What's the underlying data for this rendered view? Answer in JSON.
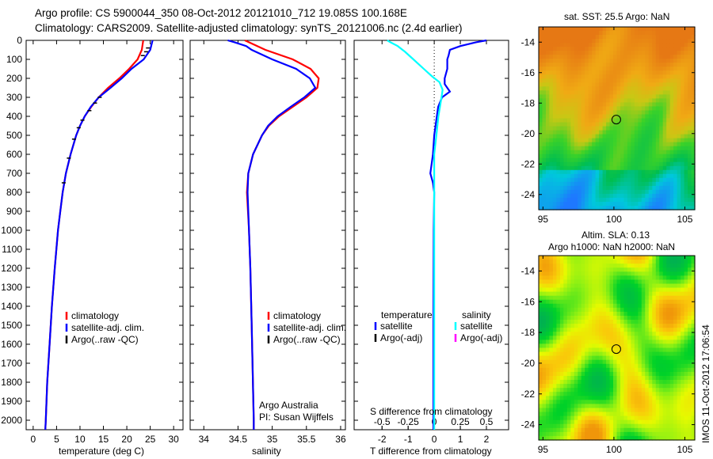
{
  "title": {
    "line1": "Argo profile: CS 5900044_350 08-Oct-2012 20121010_712 19.085S 100.168E",
    "line2": "Climatology: CARS2009. Satellite-adjusted climatology: synTS_20121006.nc (2.4d earlier)"
  },
  "colors": {
    "climatology": "#ff0000",
    "satellite": "#0000ff",
    "argo": "#000000",
    "sal_satellite": "#00ffff",
    "sal_argo": "#ff00ff"
  },
  "chart_data": [
    {
      "type": "line",
      "id": "temperature",
      "xlabel": "temperature (deg C)",
      "ylabel": "",
      "xlim": [
        -1.5,
        32
      ],
      "ylim": [
        2050,
        0
      ],
      "xticks": [
        0,
        5,
        10,
        15,
        20,
        25,
        30
      ],
      "yticks": [
        0,
        100,
        200,
        300,
        400,
        500,
        600,
        700,
        800,
        900,
        1000,
        1100,
        1200,
        1300,
        1400,
        1500,
        1600,
        1700,
        1800,
        1900,
        2000
      ],
      "legend": [
        "climatology",
        "satellite-adj. clim.",
        "Argo(..raw -QC)"
      ],
      "series": [
        {
          "name": "climatology",
          "depth": [
            0,
            50,
            100,
            150,
            200,
            250,
            300,
            350,
            400,
            450,
            500,
            600,
            700,
            800,
            900,
            1000,
            1200,
            1400,
            1600,
            1800,
            2000,
            2050
          ],
          "values": [
            23.5,
            23.2,
            22.3,
            20.5,
            18.4,
            16,
            14,
            12.4,
            11,
            10,
            9.2,
            8,
            7,
            6.3,
            5.8,
            5.3,
            4.6,
            4,
            3.5,
            3,
            2.7,
            2.6
          ]
        },
        {
          "name": "satellite-adj. clim.",
          "depth": [
            0,
            50,
            100,
            150,
            200,
            250,
            300,
            350,
            400,
            450,
            500,
            600,
            700,
            800,
            900,
            1000,
            1200,
            1400,
            1600,
            1800,
            2000,
            2050
          ],
          "values": [
            25.5,
            25,
            23.6,
            21,
            18.9,
            16.5,
            14,
            12.3,
            11,
            10,
            9.2,
            8,
            7,
            6.3,
            5.8,
            5.3,
            4.6,
            4,
            3.5,
            3,
            2.7,
            2.6
          ]
        },
        {
          "name": "Argo(..raw -QC)",
          "depth": [
            40,
            60,
            80,
            300,
            330,
            370,
            420,
            460,
            520,
            620,
            750
          ],
          "values": [
            24.6,
            24.2,
            23.5,
            14.3,
            13.3,
            12.1,
            10.6,
            9.8,
            8.8,
            7.7,
            6.6
          ]
        }
      ]
    },
    {
      "type": "line",
      "id": "salinity",
      "xlabel": "salinity",
      "xlim": [
        33.8,
        36.07
      ],
      "ylim": [
        2050,
        0
      ],
      "xticks": [
        34,
        34.5,
        35,
        35.5,
        36
      ],
      "legend": [
        "climatology",
        "satellite-adj. clim.",
        "Argo(..raw -QC)"
      ],
      "annotation": [
        "Argo Australia",
        "PI: Susan Wijffels"
      ],
      "series": [
        {
          "name": "climatology",
          "depth": [
            0,
            50,
            100,
            150,
            200,
            250,
            300,
            350,
            400,
            450,
            500,
            600,
            700,
            800,
            1000,
            1200,
            1500,
            2000,
            2050
          ],
          "values": [
            34.6,
            34.9,
            35.3,
            35.56,
            35.68,
            35.66,
            35.5,
            35.3,
            35.1,
            34.95,
            34.85,
            34.72,
            34.65,
            34.63,
            34.66,
            34.68,
            34.7,
            34.73,
            34.73
          ]
        },
        {
          "name": "satellite-adj. clim.",
          "depth": [
            0,
            10,
            30,
            50,
            100,
            150,
            200,
            250,
            300,
            350,
            400,
            450,
            500,
            600,
            700,
            800,
            1000,
            1200,
            1500,
            2000,
            2050
          ],
          "values": [
            34.35,
            34.45,
            34.62,
            34.7,
            35.0,
            35.35,
            35.55,
            35.63,
            35.47,
            35.27,
            35.08,
            34.94,
            34.85,
            34.72,
            34.65,
            34.64,
            34.66,
            34.68,
            34.7,
            34.73,
            34.73
          ]
        }
      ]
    },
    {
      "type": "line",
      "id": "difference",
      "xlabel": "T difference from climatology",
      "xlabel2": "S difference from climatology",
      "xlim": [
        -3.07,
        2.85
      ],
      "ylim": [
        2050,
        0
      ],
      "xticks": [
        -2,
        -1,
        0,
        1,
        2
      ],
      "xticks2": [
        "-0.5",
        "-0.25",
        "0",
        "0.25",
        "0.5"
      ],
      "legend_titles": [
        "temperature",
        "salinity"
      ],
      "legend": [
        "satellite",
        "Argo(-adj)",
        "satellite",
        "Argo(-adj)"
      ],
      "series": [
        {
          "name": "temperature satellite",
          "depth": [
            0,
            10,
            30,
            50,
            80,
            100,
            150,
            200,
            230,
            270,
            300,
            350,
            400,
            500,
            600,
            700,
            750,
            800,
            1000,
            1500,
            2050
          ],
          "values": [
            2.0,
            1.6,
            1.0,
            0.6,
            0.55,
            0.5,
            0.5,
            0.4,
            0.4,
            0.6,
            0.3,
            0.15,
            0.1,
            0.0,
            -0.05,
            -0.15,
            -0.05,
            0.0,
            -0.02,
            -0.03,
            -0.03
          ]
        },
        {
          "name": "salinity satellite",
          "depth": [
            0,
            10,
            30,
            60,
            100,
            150,
            190,
            220,
            260,
            300,
            400,
            500,
            600,
            800,
            1200,
            2050
          ],
          "values": [
            -0.45,
            -0.42,
            -0.35,
            -0.28,
            -0.2,
            -0.1,
            -0.02,
            0.05,
            0.08,
            0.07,
            0.04,
            0.02,
            0.0,
            0.0,
            0.0,
            0.0
          ]
        }
      ]
    },
    {
      "type": "heatmap",
      "id": "sst-map",
      "title": "sat. SST: 25.5 Argo: NaN",
      "xticks": [
        95,
        100,
        105
      ],
      "yticks": [
        -14,
        -16,
        -18,
        -20,
        -22,
        -24
      ],
      "xlim": [
        94.7,
        105.7
      ],
      "ylim": [
        -25,
        -13
      ],
      "marker": [
        100.168,
        -19.085
      ]
    },
    {
      "type": "heatmap",
      "id": "sla-map",
      "title": "Altim. SLA: 0.13",
      "subtitle": "Argo h1000: NaN h2000: NaN",
      "xticks": [
        95,
        100,
        105
      ],
      "yticks": [
        -14,
        -16,
        -18,
        -20,
        -22,
        -24
      ],
      "xlim": [
        94.7,
        105.7
      ],
      "ylim": [
        -25,
        -13
      ],
      "marker": [
        100.168,
        -19.085
      ]
    }
  ],
  "footer": {
    "stamp": "IMOS 11-Oct-2012 17:06:54"
  }
}
